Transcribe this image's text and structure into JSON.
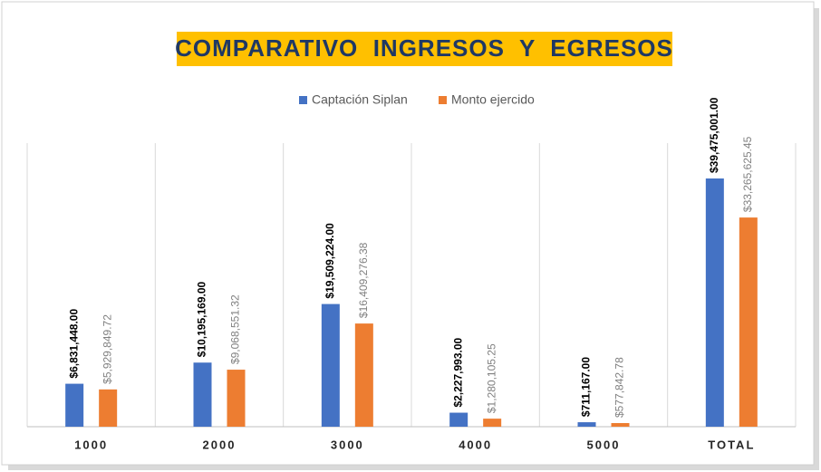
{
  "chart_data": {
    "type": "bar",
    "title": "COMPARATIVO  INGRESOS  Y  EGRESOS",
    "categories": [
      "1000",
      "2000",
      "3000",
      "4000",
      "5000",
      "TOTAL"
    ],
    "series": [
      {
        "name": "Captación Siplan",
        "color": "#4472c4",
        "values": [
          6831448.0,
          10195169.0,
          19509224.0,
          2227993.0,
          711167.0,
          39475001.0
        ],
        "value_labels": [
          "$6,831,448.00",
          "$10,195,169.00",
          "$19,509,224.00",
          "$2,227,993.00",
          "$711,167.00",
          "$39,475,001.00"
        ]
      },
      {
        "name": "Monto ejercido",
        "color": "#ed7d31",
        "values": [
          5929849.72,
          9068551.32,
          16409276.38,
          1280105.25,
          577842.78,
          33265625.45
        ],
        "value_labels": [
          "$5,929,849.72",
          "$9,068,551.32",
          "$16,409,276.38",
          "$1,280,105.25",
          "$577,842.78",
          "$33,265,625.45"
        ]
      }
    ],
    "legend": "top"
  }
}
